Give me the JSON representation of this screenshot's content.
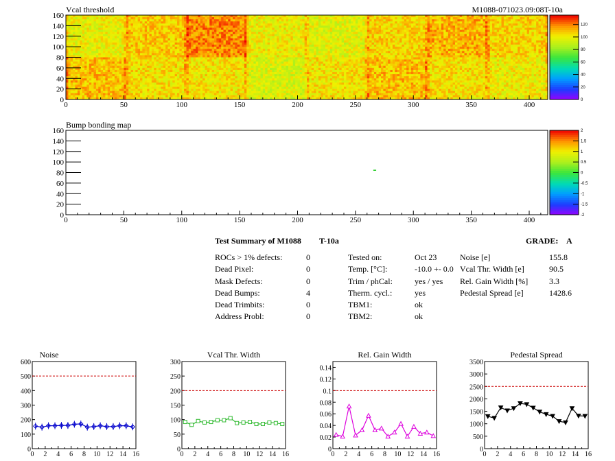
{
  "header": {
    "module_id": "M1088-071023.09:08T-10a"
  },
  "colors": {
    "limit_line": "#cc0000",
    "noise_series": "#0000cc",
    "vcal_series": "#33bb33",
    "gain_series": "#dd00dd",
    "pedestal_series": "#000000"
  },
  "summary": {
    "title": "Test Summary of M1088",
    "temp_tag": "T-10a",
    "grade_label": "GRADE:",
    "grade_value": "A",
    "defects": [
      {
        "label": "ROCs > 1% defects:",
        "value": "0"
      },
      {
        "label": "Dead Pixel:",
        "value": "0"
      },
      {
        "label": "Mask Defects:",
        "value": "0"
      },
      {
        "label": "Dead Bumps:",
        "value": "4"
      },
      {
        "label": "Dead Trimbits:",
        "value": "0"
      },
      {
        "label": "Address Probl:",
        "value": "0"
      }
    ],
    "conditions": [
      {
        "label": "Tested on:",
        "value": "Oct 23"
      },
      {
        "label": "Temp. [°C]:",
        "value": "-10.0 +- 0.0"
      },
      {
        "label": "Trim / phCal:",
        "value": "yes / yes"
      },
      {
        "label": "Therm. cycl.:",
        "value": "yes"
      },
      {
        "label": "TBM1:",
        "value": "ok"
      },
      {
        "label": "TBM2:",
        "value": "ok"
      }
    ],
    "performance": [
      {
        "label": "Noise [e]",
        "value": "155.8"
      },
      {
        "label": "Vcal Thr. Width [e]",
        "value": "90.5"
      },
      {
        "label": "Rel. Gain Width [%]",
        "value": "3.3"
      },
      {
        "label": "Pedestal Spread [e]",
        "value": "1428.6"
      }
    ]
  },
  "chart_data": [
    {
      "type": "heatmap",
      "title": "Vcal threshold",
      "xlim": [
        0,
        416
      ],
      "ylim": [
        0,
        160
      ],
      "xticks": [
        0,
        50,
        100,
        150,
        200,
        250,
        300,
        350,
        400
      ],
      "yticks": [
        0,
        20,
        40,
        60,
        80,
        100,
        120,
        140,
        160
      ],
      "xtick_labels": [
        "0",
        "50",
        "100",
        "150",
        "200",
        "250",
        "300",
        "350",
        "400"
      ],
      "ytick_labels": [
        "0",
        "20",
        "40",
        "60",
        "80",
        "100",
        "120",
        "140",
        "160"
      ],
      "color_scale": [
        0,
        135
      ],
      "palette_tick_labels": [
        "0",
        "20",
        "40",
        "60",
        "80",
        "100",
        "120"
      ],
      "grid": "8 x 2 ROCs",
      "roc_mean_values": {
        "top_row": [
          99,
          108,
          118,
          100,
          97,
          106,
          112,
          106
        ],
        "bottom_row": [
          110,
          104,
          103,
          95,
          103,
          110,
          104,
          100
        ]
      }
    },
    {
      "type": "heatmap",
      "title": "Bump bonding map",
      "xlim": [
        0,
        416
      ],
      "ylim": [
        0,
        160
      ],
      "xticks": [
        0,
        50,
        100,
        150,
        200,
        250,
        300,
        350,
        400
      ],
      "yticks": [
        0,
        20,
        40,
        60,
        80,
        100,
        120,
        140,
        160
      ],
      "xtick_labels": [
        "0",
        "50",
        "100",
        "150",
        "200",
        "250",
        "300",
        "350",
        "400"
      ],
      "ytick_labels": [
        "0",
        "20",
        "40",
        "60",
        "80",
        "100",
        "120",
        "140",
        "160"
      ],
      "color_scale": [
        -2,
        2
      ],
      "palette_tick_labels": [
        "-2",
        "-1.5",
        "-1",
        "-0.5",
        "0",
        "0.5",
        "1",
        "1.5",
        "2"
      ],
      "points": [
        {
          "x": 266,
          "y": 84
        },
        {
          "x": 267,
          "y": 84
        }
      ]
    },
    {
      "type": "line",
      "title": "Noise",
      "xlim": [
        0,
        16
      ],
      "ylim": [
        0,
        600
      ],
      "xticks": [
        0,
        2,
        4,
        6,
        8,
        10,
        12,
        14,
        16
      ],
      "yticks": [
        0,
        100,
        200,
        300,
        400,
        500,
        600
      ],
      "xtick_labels": [
        "0",
        "2",
        "4",
        "6",
        "8",
        "10",
        "12",
        "14",
        "16"
      ],
      "ytick_labels": [
        "0",
        "100",
        "200",
        "300",
        "400",
        "500",
        "600"
      ],
      "limit": 500,
      "x": [
        0.5,
        1.5,
        2.5,
        3.5,
        4.5,
        5.5,
        6.5,
        7.5,
        8.5,
        9.5,
        10.5,
        11.5,
        12.5,
        13.5,
        14.5,
        15.5
      ],
      "values": [
        155,
        148,
        158,
        158,
        160,
        160,
        168,
        170,
        148,
        152,
        158,
        152,
        152,
        158,
        158,
        150
      ]
    },
    {
      "type": "line",
      "title": "Vcal Thr. Width",
      "xlim": [
        0,
        16
      ],
      "ylim": [
        0,
        300
      ],
      "xticks": [
        0,
        2,
        4,
        6,
        8,
        10,
        12,
        14,
        16
      ],
      "yticks": [
        0,
        50,
        100,
        150,
        200,
        250,
        300
      ],
      "xtick_labels": [
        "0",
        "2",
        "4",
        "6",
        "8",
        "10",
        "12",
        "14",
        "16"
      ],
      "ytick_labels": [
        "0",
        "50",
        "100",
        "150",
        "200",
        "250",
        "300"
      ],
      "limit": 200,
      "x": [
        0.5,
        1.5,
        2.5,
        3.5,
        4.5,
        5.5,
        6.5,
        7.5,
        8.5,
        9.5,
        10.5,
        11.5,
        12.5,
        13.5,
        14.5,
        15.5
      ],
      "values": [
        92,
        82,
        95,
        90,
        92,
        98,
        98,
        105,
        88,
        90,
        92,
        85,
        85,
        90,
        88,
        85
      ]
    },
    {
      "type": "line",
      "title": "Rel. Gain Width",
      "xlim": [
        0,
        16
      ],
      "ylim": [
        0,
        0.15
      ],
      "xticks": [
        0,
        2,
        4,
        6,
        8,
        10,
        12,
        14,
        16
      ],
      "yticks": [
        0,
        0.02,
        0.04,
        0.06,
        0.08,
        0.1,
        0.12,
        0.14
      ],
      "xtick_labels": [
        "0",
        "2",
        "4",
        "6",
        "8",
        "10",
        "12",
        "14",
        "16"
      ],
      "ytick_labels": [
        "0",
        "0.02",
        "0.04",
        "0.06",
        "0.08",
        "0.1",
        "0.12",
        "0.14"
      ],
      "limit": 0.1,
      "x": [
        0.5,
        1.5,
        2.5,
        3.5,
        4.5,
        5.5,
        6.5,
        7.5,
        8.5,
        9.5,
        10.5,
        11.5,
        12.5,
        13.5,
        14.5,
        15.5
      ],
      "values": [
        0.024,
        0.021,
        0.073,
        0.023,
        0.032,
        0.057,
        0.032,
        0.035,
        0.021,
        0.028,
        0.043,
        0.021,
        0.038,
        0.026,
        0.028,
        0.022
      ]
    },
    {
      "type": "line",
      "title": "Pedestal Spread",
      "xlim": [
        0,
        16
      ],
      "ylim": [
        0,
        3500
      ],
      "xticks": [
        0,
        2,
        4,
        6,
        8,
        10,
        12,
        14,
        16
      ],
      "yticks": [
        0,
        500,
        1000,
        1500,
        2000,
        2500,
        3000,
        3500
      ],
      "xtick_labels": [
        "0",
        "2",
        "4",
        "6",
        "8",
        "10",
        "12",
        "14",
        "16"
      ],
      "ytick_labels": [
        "0",
        "500",
        "1000",
        "1500",
        "2000",
        "2500",
        "3000",
        "3500"
      ],
      "limit": 2500,
      "x": [
        0.5,
        1.5,
        2.5,
        3.5,
        4.5,
        5.5,
        6.5,
        7.5,
        8.5,
        9.5,
        10.5,
        11.5,
        12.5,
        13.5,
        14.5,
        15.5
      ],
      "values": [
        1300,
        1230,
        1650,
        1530,
        1620,
        1820,
        1780,
        1640,
        1480,
        1380,
        1310,
        1100,
        1050,
        1620,
        1320,
        1310
      ]
    }
  ]
}
